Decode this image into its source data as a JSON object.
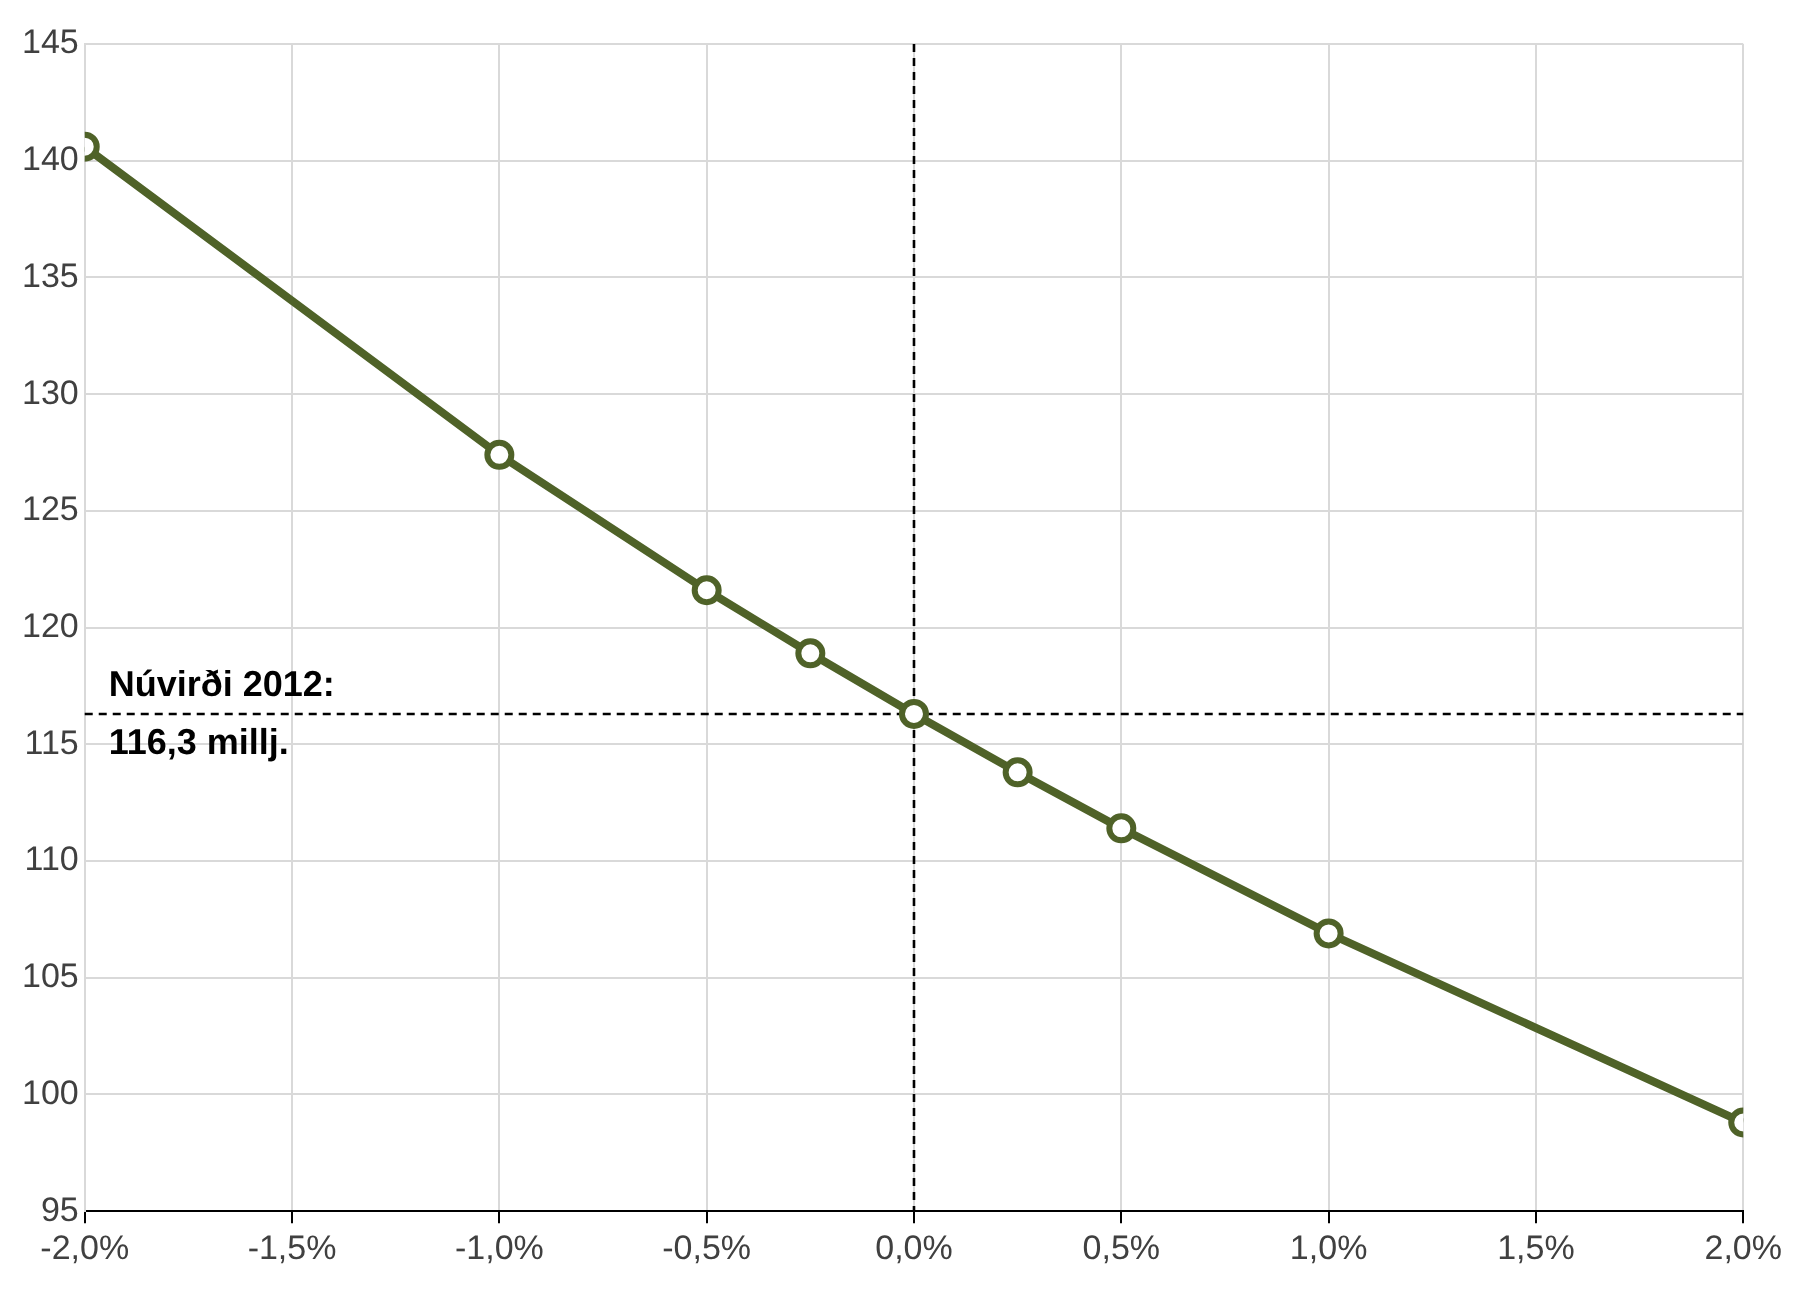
{
  "chart_data": {
    "type": "line",
    "x": [
      -2,
      -1,
      -0.5,
      -0.25,
      0,
      0.25,
      0.5,
      1,
      2
    ],
    "series": [
      {
        "color": "#4f6228",
        "values": [
          140.6,
          127.4,
          121.6,
          118.9,
          116.3,
          113.8,
          111.4,
          106.9,
          98.8
        ]
      }
    ],
    "xlim": [
      -2,
      2
    ],
    "xticks": [
      {
        "value": -2,
        "label": "-2,0%"
      },
      {
        "value": -1.5,
        "label": "-1,5%"
      },
      {
        "value": -1,
        "label": "-1,0%"
      },
      {
        "value": -0.5,
        "label": "-0,5%"
      },
      {
        "value": 0,
        "label": "0,0%"
      },
      {
        "value": 0.5,
        "label": "0,5%"
      },
      {
        "value": 1,
        "label": "1,0%"
      },
      {
        "value": 1.5,
        "label": "1,5%"
      },
      {
        "value": 2,
        "label": "2,0%"
      }
    ],
    "ylim": [
      95,
      145
    ],
    "yticks": [
      95,
      100,
      105,
      110,
      115,
      120,
      125,
      130,
      135,
      140,
      145
    ],
    "ref_lines": [
      {
        "axis": "x",
        "value": 0,
        "color": "#000000",
        "line_style": "dashed"
      },
      {
        "axis": "y",
        "value": 116.3,
        "label": "Núvirði 2012: 116,3 millj.",
        "color": "#000000",
        "line_style": "dashed"
      }
    ],
    "grid": true,
    "legend": false,
    "marker": "circle",
    "line_style": "solid"
  }
}
